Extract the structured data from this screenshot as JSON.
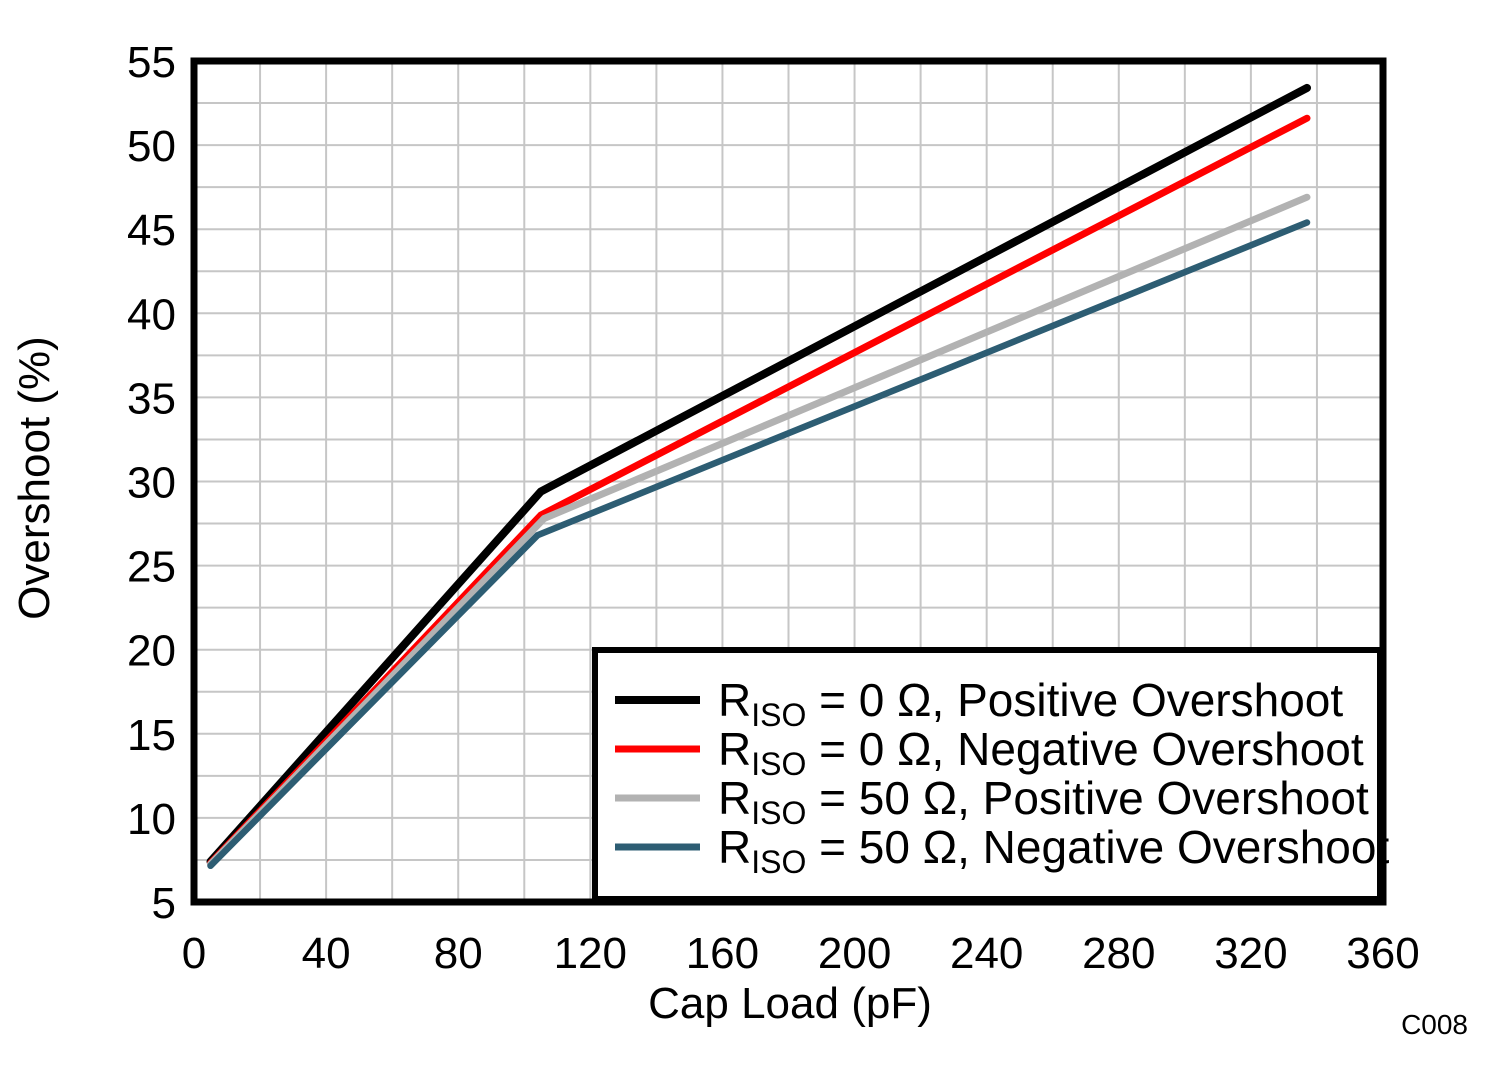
{
  "figure": {
    "code_label": "C008",
    "colors": {
      "axis": "#000000",
      "grid": "#c6c6c6",
      "legend_border": "#000000",
      "code": "#9a9a9a",
      "background": "#ffffff"
    }
  },
  "chart_data": {
    "type": "line",
    "title": "",
    "xlabel": "Cap Load (pF)",
    "ylabel": "Overshoot (%)",
    "xlim": [
      0,
      360
    ],
    "ylim": [
      5,
      55
    ],
    "xticks": [
      0,
      40,
      80,
      120,
      160,
      200,
      240,
      280,
      320,
      360
    ],
    "yticks": [
      5,
      10,
      15,
      20,
      25,
      30,
      35,
      40,
      45,
      50,
      55
    ],
    "x_grid_step": 20,
    "y_grid_step": 2.5,
    "grid": true,
    "legend_position": "bottom-right",
    "series": [
      {
        "name": "RISO = 0 Ω, Positive Overshoot",
        "label_main": "R",
        "label_sub": "ISO",
        "label_rest": " = 0 Ω, Positive Overshoot",
        "color": "#000000",
        "line_width": 8,
        "points": [
          [
            5,
            7.4
          ],
          [
            105,
            29.4
          ],
          [
            337,
            53.4
          ]
        ]
      },
      {
        "name": "RISO = 0 Ω, Negative Overshoot",
        "label_main": "R",
        "label_sub": "ISO",
        "label_rest": " = 0 Ω, Negative Overshoot",
        "color": "#ff0000",
        "line_width": 7,
        "points": [
          [
            5,
            7.3
          ],
          [
            105,
            28.0
          ],
          [
            337,
            51.6
          ]
        ]
      },
      {
        "name": "RISO = 50 Ω, Positive Overshoot",
        "label_main": "R",
        "label_sub": "ISO",
        "label_rest": " = 50 Ω, Positive Overshoot",
        "color": "#b2b2b2",
        "line_width": 7,
        "points": [
          [
            5,
            7.25
          ],
          [
            106,
            27.8
          ],
          [
            337,
            46.9
          ]
        ]
      },
      {
        "name": "RISO = 50 Ω, Negative Overshoot",
        "label_main": "R",
        "label_sub": "ISO",
        "label_rest": " = 50 Ω, Negative Overshoot",
        "color": "#2d5d73",
        "line_width": 6.5,
        "points": [
          [
            5,
            7.15
          ],
          [
            104,
            26.8
          ],
          [
            337,
            45.4
          ]
        ]
      }
    ]
  }
}
